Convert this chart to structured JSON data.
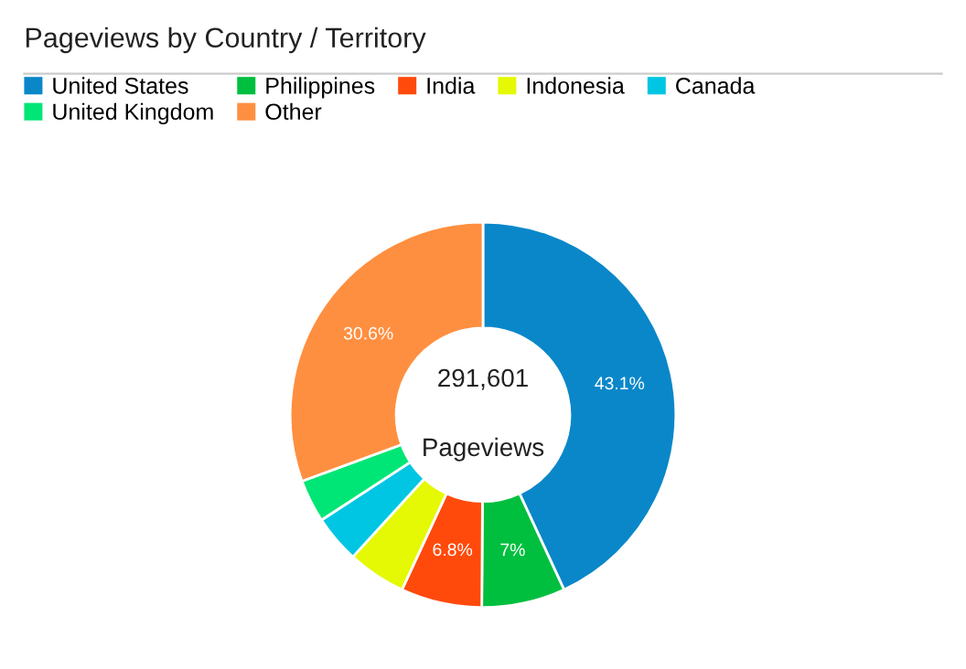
{
  "chart_data": {
    "type": "donut",
    "title": "Pageviews by Country / Territory",
    "categories": [
      "United States",
      "Philippines",
      "India",
      "Indonesia",
      "Canada",
      "United Kingdom",
      "Other"
    ],
    "values": [
      43.1,
      7,
      6.8,
      4.9,
      4.0,
      3.6,
      30.6
    ],
    "colors": [
      "#0a87c9",
      "#00bf3f",
      "#ff4a0c",
      "#e4f903",
      "#00c6e3",
      "#00e676",
      "#ff8f40"
    ],
    "value_labels": [
      "43.1%",
      "7%",
      "6.8%",
      null,
      null,
      null,
      "30.6%"
    ],
    "annotations": [
      "291,601",
      "Pageviews"
    ],
    "legend": "top left"
  }
}
